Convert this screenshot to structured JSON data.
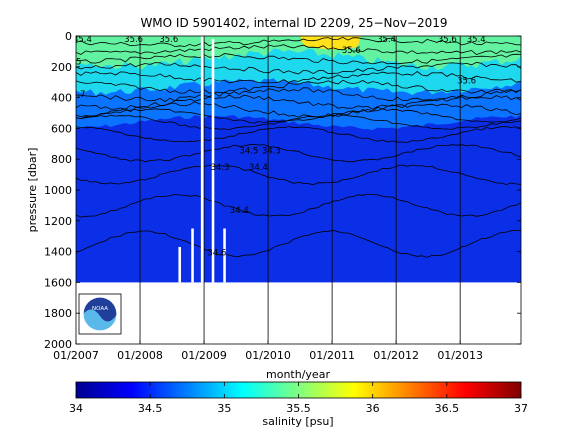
{
  "chart_data": [
    {
      "type": "heatmap",
      "title": "WMO ID 5901402, internal ID 2209, 25−Nov−2019",
      "xlabel": "month/year",
      "ylabel": "pressure [dbar]",
      "x_ticks": [
        "01/2007",
        "01/2008",
        "01/2009",
        "01/2010",
        "01/2011",
        "01/2012",
        "01/2013"
      ],
      "x_range": [
        "2007-01",
        "2013-12"
      ],
      "y_ticks": [
        0,
        200,
        400,
        600,
        800,
        1000,
        1200,
        1400,
        1600,
        1800,
        2000
      ],
      "ylim": [
        0,
        2000
      ],
      "y_reversed": true,
      "data_max_pressure": 1600,
      "grid": "vertical lines at each year",
      "contour_labels": [
        {
          "text": "35.4",
          "t": 2007.1,
          "p": 20
        },
        {
          "text": "35.6",
          "t": 2007.9,
          "p": 20
        },
        {
          "text": "35.6",
          "t": 2008.45,
          "p": 20
        },
        {
          "text": "35",
          "t": 2007.0,
          "p": 165
        },
        {
          "text": "34.7",
          "t": 2007.0,
          "p": 375
        },
        {
          "text": "35.6",
          "t": 2011.3,
          "p": 90
        },
        {
          "text": "35.4",
          "t": 2011.85,
          "p": 20
        },
        {
          "text": "35.6",
          "t": 2012.8,
          "p": 20
        },
        {
          "text": "35.4",
          "t": 2013.25,
          "p": 20
        },
        {
          "text": "35.6",
          "t": 2013.1,
          "p": 290
        },
        {
          "text": "34.5",
          "t": 2009.7,
          "p": 745
        },
        {
          "text": "34.3",
          "t": 2010.05,
          "p": 745
        },
        {
          "text": "34.3",
          "t": 2009.25,
          "p": 850
        },
        {
          "text": "34.4",
          "t": 2009.85,
          "p": 850
        },
        {
          "text": "34.4",
          "t": 2009.55,
          "p": 1130
        },
        {
          "text": "34.6",
          "t": 2009.2,
          "p": 1405
        }
      ],
      "logo": "NOAA",
      "colorbar": {
        "label": "salinity [psu]",
        "ticks": [
          34,
          34.5,
          35,
          35.5,
          36,
          36.5,
          37
        ],
        "range": [
          34,
          37
        ],
        "colormap": "jet"
      }
    }
  ],
  "colors": {
    "deep": "#0b2fe6",
    "mid": "#0a73ff",
    "upper": "#1ed8ee",
    "surface": "#62f2a0",
    "max": "#ffe21a"
  }
}
